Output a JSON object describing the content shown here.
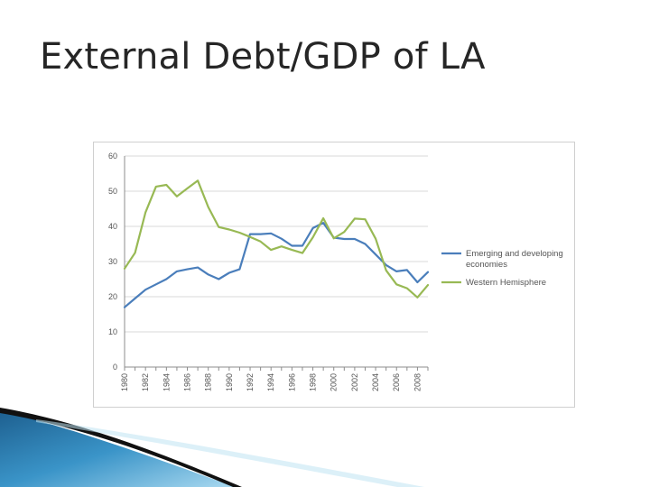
{
  "slide": {
    "title": "External Debt/GDP of LA"
  },
  "chart_data": {
    "type": "line",
    "x": [
      1980,
      1981,
      1982,
      1983,
      1984,
      1985,
      1986,
      1987,
      1988,
      1989,
      1990,
      1991,
      1992,
      1993,
      1994,
      1995,
      1996,
      1997,
      1998,
      1999,
      2000,
      2001,
      2002,
      2003,
      2004,
      2005,
      2006,
      2007,
      2008,
      2009
    ],
    "x_tick_labels": [
      "1980",
      "1982",
      "1984",
      "1986",
      "1988",
      "1990",
      "1992",
      "1994",
      "1996",
      "1998",
      "2000",
      "2002",
      "2004",
      "2006",
      "2008"
    ],
    "y_ticks": [
      0,
      10,
      20,
      30,
      40,
      50,
      60
    ],
    "ylim": [
      0,
      60
    ],
    "grid": true,
    "legend_position": "right",
    "series": [
      {
        "name": "Emerging and developing economies",
        "legend_lines": [
          "Emerging and developing",
          "economies"
        ],
        "color": "#4a7ebb",
        "values": [
          17.0,
          19.5,
          22.0,
          23.5,
          25.0,
          27.2,
          27.8,
          28.3,
          26.3,
          25.0,
          26.8,
          27.8,
          37.8,
          37.8,
          38.0,
          36.5,
          34.5,
          34.5,
          39.5,
          41.0,
          36.8,
          36.4,
          36.4,
          35.0,
          32.0,
          29.0,
          27.2,
          27.6,
          24.1,
          27.0
        ]
      },
      {
        "name": "Western Hemisphere",
        "legend_lines": [
          "Western Hemisphere"
        ],
        "color": "#98b954",
        "values": [
          28.0,
          32.5,
          44.0,
          51.3,
          51.8,
          48.5,
          50.8,
          53.0,
          45.5,
          39.8,
          39.1,
          38.2,
          37.0,
          35.7,
          33.3,
          34.3,
          33.3,
          32.4,
          36.9,
          42.3,
          36.6,
          38.4,
          42.2,
          42.0,
          36.5,
          27.5,
          23.5,
          22.4,
          19.8,
          23.3
        ]
      }
    ]
  }
}
